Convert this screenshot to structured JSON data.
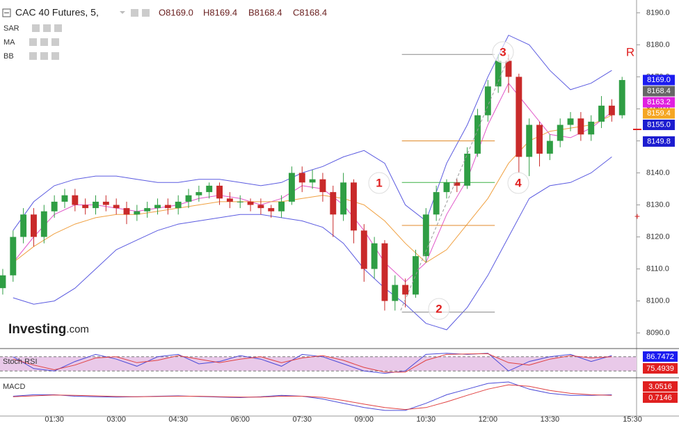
{
  "chart_data": {
    "type": "candlestick",
    "title": "CAC 40 Futures, 5,",
    "quote": [
      "O8169.0",
      "H8169.4",
      "B8168.4",
      "C8168.4"
    ],
    "indicators": [
      "SAR",
      "MA",
      "BB"
    ],
    "up_color": "#2f9e44",
    "down_color": "#c92a2a",
    "x": [
      15,
      30,
      45,
      60,
      75,
      90,
      105,
      120,
      135,
      150,
      165,
      180,
      195,
      210,
      225,
      240,
      255,
      270,
      285,
      300,
      315,
      330,
      345,
      360,
      375,
      390,
      405,
      420,
      435,
      450,
      465,
      480,
      495,
      510,
      525,
      540,
      555,
      570,
      585,
      600,
      615,
      630,
      645,
      660,
      675,
      690,
      705,
      720,
      735,
      750,
      765,
      780,
      795,
      810,
      825,
      840,
      855,
      870,
      885,
      900,
      915
    ],
    "open": [
      8104,
      8108,
      8120,
      8127,
      8120,
      8128,
      8131,
      8133,
      8130,
      8129,
      8131,
      8130,
      8129,
      8127,
      8128,
      8129,
      8130,
      8129,
      8131,
      8133,
      8134,
      8136,
      8132,
      8131,
      8131,
      8130,
      8129,
      8128,
      8131,
      8140,
      8137,
      8138,
      8134,
      8127,
      8137,
      8122,
      8110,
      8118,
      8100,
      8105,
      8102,
      8114,
      8127,
      8134,
      8137,
      8136,
      8146,
      8158,
      8167,
      8175,
      8170,
      8145,
      8155,
      8146,
      8150,
      8155,
      8157,
      8152,
      8156,
      8161,
      8158
    ],
    "high": [
      8110,
      8122,
      8129,
      8129,
      8130,
      8133,
      8135,
      8135,
      8132,
      8133,
      8133,
      8132,
      8131,
      8130,
      8131,
      8132,
      8132,
      8133,
      8135,
      8136,
      8137,
      8137,
      8134,
      8133,
      8132,
      8132,
      8130,
      8133,
      8142,
      8142,
      8141,
      8140,
      8136,
      8140,
      8138,
      8124,
      8120,
      8119,
      8108,
      8107,
      8116,
      8129,
      8136,
      8138,
      8138,
      8148,
      8160,
      8169,
      8177,
      8177,
      8171,
      8157,
      8156,
      8152,
      8157,
      8159,
      8159,
      8158,
      8164,
      8163,
      8170
    ],
    "low": [
      8102,
      8106,
      8118,
      8117,
      8118,
      8126,
      8129,
      8128,
      8127,
      8127,
      8128,
      8127,
      8124,
      8125,
      8126,
      8127,
      8127,
      8127,
      8129,
      8131,
      8132,
      8130,
      8129,
      8129,
      8128,
      8127,
      8126,
      8126,
      8130,
      8134,
      8135,
      8131,
      8120,
      8125,
      8118,
      8106,
      8107,
      8097,
      8097,
      8098,
      8101,
      8112,
      8125,
      8132,
      8134,
      8135,
      8145,
      8156,
      8165,
      8165,
      8140,
      8139,
      8142,
      8144,
      8148,
      8153,
      8150,
      8150,
      8154,
      8156,
      8157
    ],
    "close": [
      8108,
      8120,
      8127,
      8120,
      8128,
      8131,
      8133,
      8130,
      8129,
      8131,
      8130,
      8129,
      8127,
      8128,
      8129,
      8130,
      8129,
      8131,
      8133,
      8134,
      8136,
      8132,
      8131,
      8131,
      8130,
      8129,
      8128,
      8131,
      8140,
      8137,
      8138,
      8134,
      8127,
      8137,
      8122,
      8110,
      8118,
      8100,
      8105,
      8102,
      8114,
      8127,
      8134,
      8137,
      8136,
      8146,
      8158,
      8167,
      8175,
      8170,
      8145,
      8155,
      8146,
      8150,
      8155,
      8157,
      8152,
      8156,
      8161,
      8158,
      8169
    ],
    "xlim": [
      11,
      936
    ],
    "xticks": [
      {
        "value": 90,
        "label": "01:30"
      },
      {
        "value": 180,
        "label": "03:00"
      },
      {
        "value": 270,
        "label": "04:30"
      },
      {
        "value": 360,
        "label": "06:00"
      },
      {
        "value": 450,
        "label": "07:30"
      },
      {
        "value": 540,
        "label": "09:00"
      },
      {
        "value": 630,
        "label": "10:30"
      },
      {
        "value": 720,
        "label": "12:00"
      },
      {
        "value": 810,
        "label": "13:30"
      },
      {
        "value": 930,
        "label": "15:30"
      }
    ],
    "ylim": [
      8086,
      8194
    ],
    "yticks": [
      {
        "value": 8090,
        "label": "8090.0"
      },
      {
        "value": 8100,
        "label": "8100.0"
      },
      {
        "value": 8110,
        "label": "8110.0"
      },
      {
        "value": 8120,
        "label": "8120.0"
      },
      {
        "value": 8130,
        "label": "8130.0"
      },
      {
        "value": 8140,
        "label": "8140.0"
      },
      {
        "value": 8150,
        "label": "8150.0"
      },
      {
        "value": 8160,
        "label": "8160.0"
      },
      {
        "value": 8170,
        "label": "8170.0"
      },
      {
        "value": 8180,
        "label": "8180.0"
      },
      {
        "value": 8190,
        "label": "8190.0"
      }
    ],
    "overlays": {
      "x": [
        30,
        60,
        90,
        120,
        150,
        180,
        210,
        240,
        270,
        300,
        330,
        360,
        390,
        420,
        450,
        480,
        510,
        540,
        570,
        600,
        630,
        660,
        690,
        720,
        750,
        780,
        810,
        840,
        870,
        900
      ],
      "series": [
        {
          "color": "#5a5ae0",
          "values": [
            8122,
            8131,
            8136,
            8138,
            8139,
            8139,
            8138,
            8137,
            8137,
            8138,
            8138,
            8137,
            8136,
            8137,
            8140,
            8142,
            8145,
            8147,
            8143,
            8130,
            8125,
            8143,
            8155,
            8170,
            8183,
            8180,
            8172,
            8166,
            8168,
            8172
          ]
        },
        {
          "color": "#5a5ae0",
          "values": [
            8101,
            8099,
            8100,
            8104,
            8110,
            8116,
            8119,
            8122,
            8124,
            8125,
            8126,
            8127,
            8127,
            8126,
            8125,
            8123,
            8118,
            8110,
            8104,
            8099,
            8093,
            8091,
            8098,
            8108,
            8120,
            8132,
            8136,
            8137,
            8140,
            8145
          ]
        },
        {
          "color": "#e055c8",
          "values": [
            8112,
            8120,
            8127,
            8130,
            8130,
            8129,
            8128,
            8129,
            8130,
            8132,
            8133,
            8132,
            8130,
            8132,
            8136,
            8135,
            8130,
            8122,
            8112,
            8106,
            8112,
            8127,
            8138,
            8155,
            8168,
            8160,
            8152,
            8151,
            8154,
            8159
          ]
        },
        {
          "color": "#f0a040",
          "values": [
            8112,
            8117,
            8121,
            8124,
            8126,
            8127,
            8127,
            8128,
            8129,
            8130,
            8131,
            8131,
            8131,
            8131,
            8132,
            8133,
            8132,
            8130,
            8125,
            8118,
            8112,
            8116,
            8124,
            8132,
            8143,
            8150,
            8153,
            8154,
            8155,
            8158
          ]
        }
      ]
    },
    "levels": [
      {
        "value": 8177,
        "color": "#888888"
      },
      {
        "value": 8150,
        "color": "#e08a2a"
      },
      {
        "value": 8137,
        "color": "#3cb043"
      },
      {
        "value": 8123.6,
        "color": "#e08a2a"
      },
      {
        "value": 8096.5,
        "color": "#888888"
      }
    ],
    "level_x": [
      595,
      730
    ],
    "price_labels": [
      {
        "value": 8169,
        "label": "8169.0",
        "color": "#1c1cf0"
      },
      {
        "value": 8168.4,
        "label": "8168.4",
        "color": "#666666"
      },
      {
        "value": 8163.2,
        "label": "8163.2",
        "color": "#e020e0"
      },
      {
        "value": 8159.4,
        "label": "8159.4",
        "color": "#f5a623"
      },
      {
        "value": 8155,
        "label": "8155.0",
        "color": "#1c1cd0"
      },
      {
        "value": 8149.8,
        "label": "8149.8",
        "color": "#1c1cd0"
      }
    ],
    "annotations": [
      "1",
      "2",
      "3",
      "4",
      "R"
    ],
    "stoch": {
      "title": "Stoch RSI",
      "ylim": [
        0,
        100
      ],
      "bands": [
        20,
        80
      ],
      "x": [
        30,
        60,
        90,
        120,
        150,
        180,
        210,
        240,
        270,
        300,
        330,
        360,
        390,
        420,
        450,
        480,
        510,
        540,
        570,
        600,
        630,
        660,
        690,
        720,
        750,
        780,
        810,
        840,
        870,
        900
      ],
      "series": [
        {
          "color": "#4a4ad8",
          "values": [
            80,
            30,
            20,
            60,
            90,
            70,
            40,
            80,
            90,
            50,
            60,
            85,
            70,
            40,
            90,
            80,
            50,
            20,
            10,
            20,
            90,
            95,
            90,
            95,
            20,
            60,
            80,
            90,
            60,
            85
          ]
        },
        {
          "color": "#e04040",
          "values": [
            70,
            45,
            25,
            45,
            75,
            80,
            55,
            65,
            85,
            70,
            55,
            70,
            80,
            55,
            75,
            85,
            65,
            35,
            15,
            15,
            65,
            90,
            92,
            93,
            55,
            45,
            70,
            85,
            75,
            80
          ]
        }
      ],
      "labels": [
        {
          "value": 86.7472,
          "label": "86.7472",
          "color": "#1c1cf0"
        },
        {
          "value": 75.4939,
          "label": "75.4939",
          "color": "#e02020"
        }
      ]
    },
    "macd": {
      "title": "MACD",
      "ylim": [
        -6,
        6
      ],
      "x": [
        30,
        60,
        90,
        120,
        150,
        180,
        210,
        240,
        270,
        300,
        330,
        360,
        390,
        420,
        450,
        480,
        510,
        540,
        570,
        600,
        630,
        660,
        690,
        720,
        750,
        780,
        810,
        840,
        870,
        900
      ],
      "series": [
        {
          "color": "#4a4ad8",
          "values": [
            0.5,
            1,
            1,
            0.5,
            0.3,
            0.2,
            0.3,
            0.5,
            0.6,
            0.4,
            0.2,
            0,
            0.3,
            0.8,
            0.5,
            -0.5,
            -2,
            -3.5,
            -4.5,
            -4.5,
            -2,
            1,
            3,
            5,
            5.5,
            3,
            1.5,
            0.8,
            0.8,
            1
          ]
        },
        {
          "color": "#e04040",
          "values": [
            0.3,
            0.6,
            0.9,
            0.8,
            0.6,
            0.4,
            0.3,
            0.4,
            0.5,
            0.5,
            0.3,
            0.2,
            0.2,
            0.5,
            0.5,
            0.1,
            -1,
            -2.3,
            -3.5,
            -4.2,
            -3.5,
            -1.5,
            0.8,
            3,
            4.5,
            4,
            2.5,
            1.5,
            1,
            0.8
          ]
        }
      ],
      "labels": [
        {
          "value": 3.0516,
          "label": "3.0516",
          "color": "#e02020"
        },
        {
          "value": 0.7146,
          "label": "0.7146",
          "color": "#e02020"
        }
      ]
    },
    "logo": [
      "Investing",
      ".com"
    ]
  }
}
